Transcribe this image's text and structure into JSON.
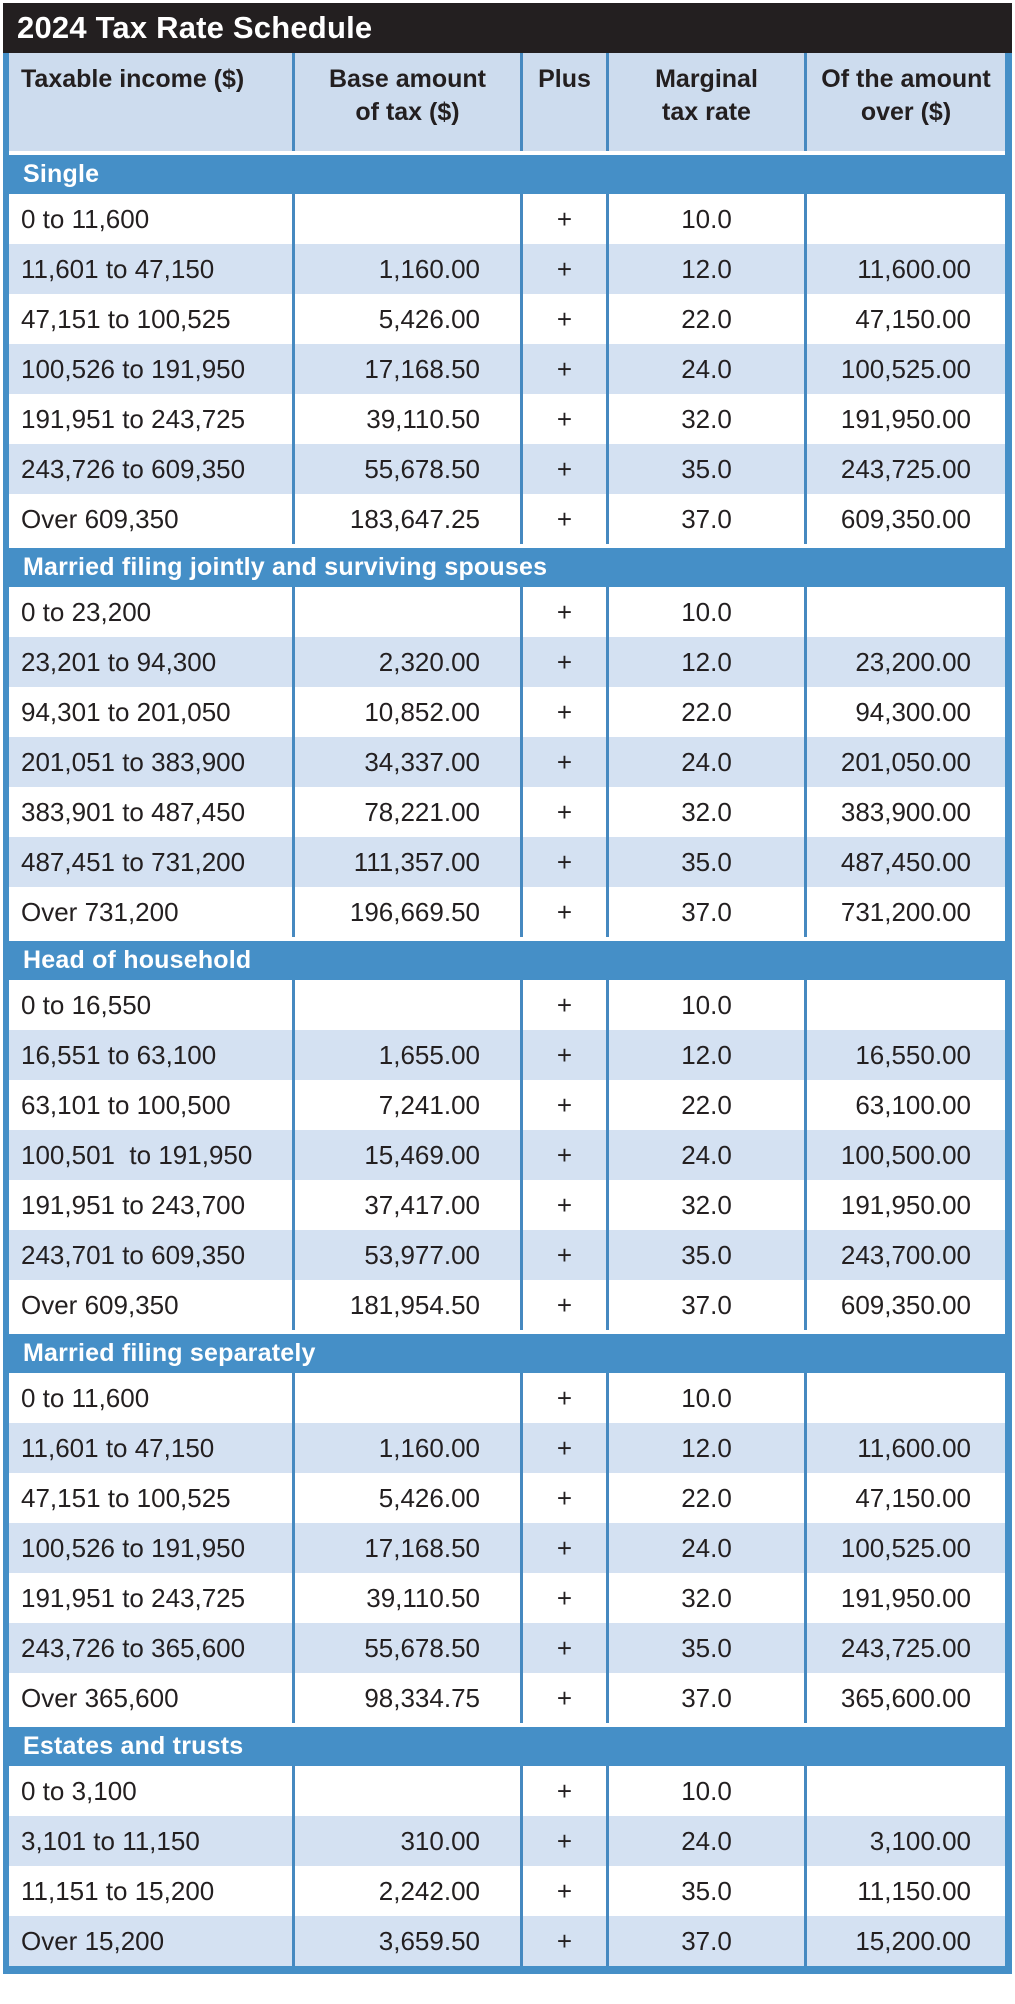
{
  "title": "2024 Tax Rate Schedule",
  "columns": [
    "Taxable income ($)",
    "Base amount\nof tax ($)",
    "Plus",
    "Marginal\ntax rate",
    "Of the amount\nover ($)"
  ],
  "sections": [
    {
      "label": "Single",
      "rows": [
        [
          "0 to 11,600",
          "",
          "+",
          "10.0",
          ""
        ],
        [
          "11,601 to 47,150",
          "1,160.00",
          "+",
          "12.0",
          "11,600.00"
        ],
        [
          "47,151 to 100,525",
          "5,426.00",
          "+",
          "22.0",
          "47,150.00"
        ],
        [
          "100,526 to 191,950",
          "17,168.50",
          "+",
          "24.0",
          "100,525.00"
        ],
        [
          "191,951 to 243,725",
          "39,110.50",
          "+",
          "32.0",
          "191,950.00"
        ],
        [
          "243,726 to 609,350",
          "55,678.50",
          "+",
          "35.0",
          "243,725.00"
        ],
        [
          "Over 609,350",
          "183,647.25",
          "+",
          "37.0",
          "609,350.00"
        ]
      ]
    },
    {
      "label": "Married filing jointly and surviving spouses",
      "rows": [
        [
          "0 to 23,200",
          "",
          "+",
          "10.0",
          ""
        ],
        [
          "23,201 to 94,300",
          "2,320.00",
          "+",
          "12.0",
          "23,200.00"
        ],
        [
          "94,301 to 201,050",
          "10,852.00",
          "+",
          "22.0",
          "94,300.00"
        ],
        [
          "201,051 to 383,900",
          "34,337.00",
          "+",
          "24.0",
          "201,050.00"
        ],
        [
          "383,901 to 487,450",
          "78,221.00",
          "+",
          "32.0",
          "383,900.00"
        ],
        [
          "487,451 to 731,200",
          "111,357.00",
          "+",
          "35.0",
          "487,450.00"
        ],
        [
          "Over 731,200",
          "196,669.50",
          "+",
          "37.0",
          "731,200.00"
        ]
      ]
    },
    {
      "label": "Head of household",
      "rows": [
        [
          "0 to 16,550",
          "",
          "+",
          "10.0",
          ""
        ],
        [
          "16,551 to 63,100",
          "1,655.00",
          "+",
          "12.0",
          "16,550.00"
        ],
        [
          "63,101 to 100,500",
          "7,241.00",
          "+",
          "22.0",
          "63,100.00"
        ],
        [
          "100,501  to 191,950",
          "15,469.00",
          "+",
          "24.0",
          "100,500.00"
        ],
        [
          "191,951 to 243,700",
          "37,417.00",
          "+",
          "32.0",
          "191,950.00"
        ],
        [
          "243,701 to 609,350",
          "53,977.00",
          "+",
          "35.0",
          "243,700.00"
        ],
        [
          "Over 609,350",
          "181,954.50",
          "+",
          "37.0",
          "609,350.00"
        ]
      ]
    },
    {
      "label": "Married filing separately",
      "rows": [
        [
          "0 to 11,600",
          "",
          "+",
          "10.0",
          ""
        ],
        [
          "11,601 to 47,150",
          "1,160.00",
          "+",
          "12.0",
          "11,600.00"
        ],
        [
          "47,151 to 100,525",
          "5,426.00",
          "+",
          "22.0",
          "47,150.00"
        ],
        [
          "100,526 to 191,950",
          "17,168.50",
          "+",
          "24.0",
          "100,525.00"
        ],
        [
          "191,951 to 243,725",
          "39,110.50",
          "+",
          "32.0",
          "191,950.00"
        ],
        [
          "243,726 to 365,600",
          "55,678.50",
          "+",
          "35.0",
          "243,725.00"
        ],
        [
          "Over 365,600",
          "98,334.75",
          "+",
          "37.0",
          "365,600.00"
        ]
      ]
    },
    {
      "label": "Estates and trusts",
      "rows": [
        [
          "0 to 3,100",
          "",
          "+",
          "10.0",
          ""
        ],
        [
          "3,101 to 11,150",
          "310.00",
          "+",
          "24.0",
          "3,100.00"
        ],
        [
          "11,151 to 15,200",
          "2,242.00",
          "+",
          "35.0",
          "11,150.00"
        ],
        [
          "Over 15,200",
          "3,659.50",
          "+",
          "37.0",
          "15,200.00"
        ]
      ]
    }
  ],
  "colors": {
    "title-bg": "#231f20",
    "header-bg": "#cddcee",
    "band-blue": "#458fc7",
    "stripe": "#d4e1f2",
    "divider": "#4689c0",
    "text": "#231f20"
  }
}
